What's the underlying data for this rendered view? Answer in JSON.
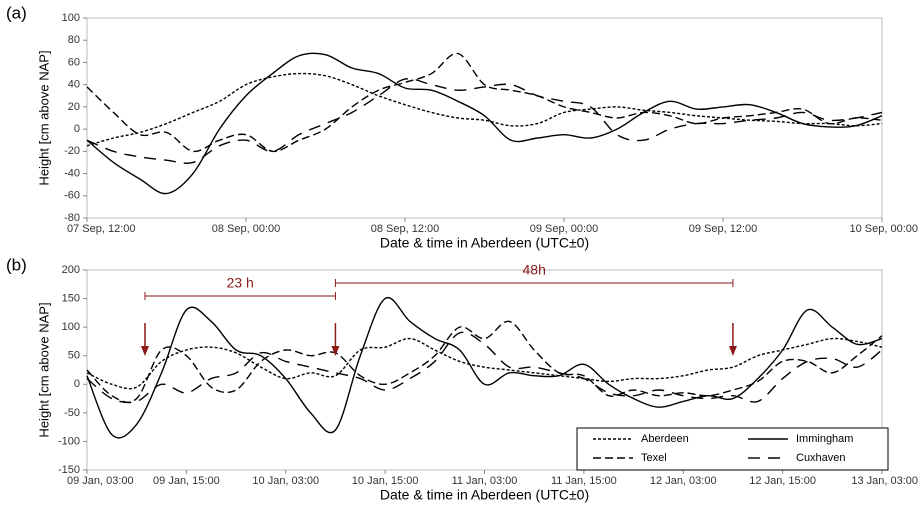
{
  "chart_data": [
    {
      "type": "line",
      "panel_label": "(a)",
      "y_label": "Height [cm above NAP]",
      "x_label": "Date & time in Aberdeen (UTC±0)",
      "x": [
        0,
        2,
        4,
        6,
        8,
        10,
        12,
        14,
        16,
        18,
        20,
        22,
        24,
        26,
        28,
        30,
        32,
        34,
        36,
        38,
        40,
        42,
        44,
        46,
        48,
        50,
        52,
        54,
        56,
        58,
        60
      ],
      "xlim": [
        0,
        60
      ],
      "xticks": [
        {
          "value": 0,
          "label": "07 Sep, 12:00"
        },
        {
          "value": 12,
          "label": "08 Sep, 00:00"
        },
        {
          "value": 24,
          "label": "08 Sep, 12:00"
        },
        {
          "value": 36,
          "label": "09 Sep, 00:00"
        },
        {
          "value": 48,
          "label": "09 Sep, 12:00"
        },
        {
          "value": 60,
          "label": "10 Sep, 00:00"
        }
      ],
      "ylim": [
        -80,
        100
      ],
      "yticks": [
        -80,
        -60,
        -40,
        -20,
        0,
        20,
        40,
        60,
        80,
        100
      ],
      "series": [
        {
          "color": "#000000",
          "dash": "3,2",
          "values": [
            -15,
            -8,
            -3,
            5,
            15,
            25,
            40,
            47,
            50,
            48,
            40,
            30,
            22,
            15,
            10,
            8,
            3,
            5,
            15,
            18,
            20,
            17,
            15,
            12,
            10,
            8,
            7,
            5,
            5,
            3,
            5
          ]
        },
        {
          "color": "#000000",
          "dash": "",
          "values": [
            -10,
            -30,
            -45,
            -58,
            -40,
            0,
            30,
            50,
            66,
            67,
            55,
            50,
            37,
            35,
            25,
            12,
            -10,
            -8,
            -5,
            -8,
            0,
            15,
            25,
            18,
            20,
            22,
            15,
            5,
            2,
            3,
            12
          ]
        },
        {
          "color": "#000000",
          "dash": "8,4",
          "values": [
            38,
            15,
            -5,
            -3,
            -20,
            -10,
            -5,
            -20,
            -10,
            0,
            20,
            35,
            42,
            50,
            68,
            40,
            35,
            30,
            20,
            15,
            10,
            15,
            12,
            5,
            10,
            12,
            15,
            18,
            5,
            10,
            8
          ]
        },
        {
          "color": "#000000",
          "dash": "12,8",
          "values": [
            -10,
            -20,
            -25,
            -28,
            -30,
            -15,
            -10,
            -20,
            -5,
            5,
            15,
            30,
            45,
            40,
            35,
            38,
            40,
            30,
            25,
            20,
            -5,
            -10,
            0,
            5,
            5,
            8,
            10,
            15,
            8,
            10,
            15
          ]
        }
      ]
    },
    {
      "type": "line",
      "panel_label": "(b)",
      "y_label": "Height [cm above NAP]",
      "x_label": "Date & time in Aberdeen (UTC±0)",
      "x": [
        0,
        3,
        6,
        9,
        12,
        15,
        18,
        21,
        24,
        27,
        30,
        33,
        36,
        39,
        42,
        45,
        48,
        51,
        54,
        57,
        60,
        63,
        66,
        69,
        72,
        75,
        78,
        81,
        84,
        87,
        90,
        93,
        96
      ],
      "xlim": [
        0,
        96
      ],
      "xticks": [
        {
          "value": 0,
          "label": "09 Jan, 03:00"
        },
        {
          "value": 12,
          "label": "09 Jan, 15:00"
        },
        {
          "value": 24,
          "label": "10 Jan, 03:00"
        },
        {
          "value": 36,
          "label": "10 Jan, 15:00"
        },
        {
          "value": 48,
          "label": "11 Jan, 03:00"
        },
        {
          "value": 60,
          "label": "11 Jan, 15:00"
        },
        {
          "value": 72,
          "label": "12 Jan, 03:00"
        },
        {
          "value": 84,
          "label": "12 Jan, 15:00"
        },
        {
          "value": 96,
          "label": "13 Jan, 03:00"
        }
      ],
      "ylim": [
        -150,
        200
      ],
      "yticks": [
        -150,
        -100,
        -50,
        0,
        50,
        100,
        150,
        200
      ],
      "legend": "lower right",
      "annotations": [
        "23 h",
        "48h"
      ],
      "series": [
        {
          "name": "Aberdeen",
          "color": "#000000",
          "dash": "3,2",
          "values": [
            20,
            0,
            -5,
            40,
            60,
            65,
            55,
            30,
            10,
            20,
            15,
            60,
            65,
            80,
            60,
            40,
            30,
            25,
            20,
            15,
            10,
            5,
            10,
            10,
            15,
            25,
            30,
            50,
            60,
            70,
            80,
            75,
            65
          ]
        },
        {
          "name": "Immingham",
          "color": "#000000",
          "dash": "",
          "values": [
            15,
            -88,
            -70,
            20,
            130,
            110,
            60,
            50,
            10,
            -50,
            -80,
            50,
            150,
            110,
            80,
            60,
            0,
            20,
            15,
            15,
            35,
            0,
            -25,
            -40,
            -30,
            -20,
            -25,
            10,
            60,
            130,
            100,
            70,
            80
          ]
        },
        {
          "name": "Texel",
          "color": "#000000",
          "dash": "8,4",
          "values": [
            25,
            -20,
            -25,
            60,
            50,
            -5,
            -10,
            40,
            60,
            50,
            55,
            15,
            0,
            20,
            50,
            100,
            80,
            110,
            60,
            20,
            15,
            -20,
            -10,
            -20,
            -15,
            -20,
            -10,
            5,
            40,
            40,
            20,
            50,
            85
          ]
        },
        {
          "name": "Cuxhaven",
          "color": "#000000",
          "dash": "12,8",
          "values": [
            10,
            -25,
            -30,
            0,
            -15,
            10,
            20,
            55,
            40,
            30,
            20,
            10,
            -10,
            10,
            40,
            90,
            70,
            30,
            30,
            20,
            10,
            -15,
            -20,
            -10,
            -20,
            -25,
            -20,
            -30,
            10,
            40,
            45,
            30,
            60
          ]
        }
      ]
    }
  ]
}
